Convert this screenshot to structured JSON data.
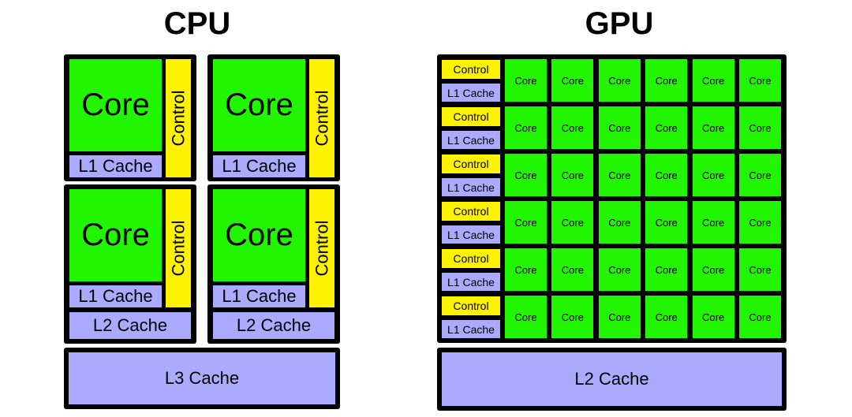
{
  "cpu": {
    "title": "CPU",
    "core_label": "Core",
    "control_label": "Control",
    "l1_label": "L1 Cache",
    "l2_label": "L2 Cache",
    "l3_label": "L3 Cache",
    "core_count": 4
  },
  "gpu": {
    "title": "GPU",
    "core_label": "Core",
    "control_label": "Control",
    "l1_label": "L1 Cache",
    "l2_label": "L2 Cache",
    "rows": 6,
    "cores_per_row": 6
  },
  "colors": {
    "core": "#22f500",
    "control": "#fff200",
    "cache": "#aaaaff",
    "border": "#000000"
  }
}
